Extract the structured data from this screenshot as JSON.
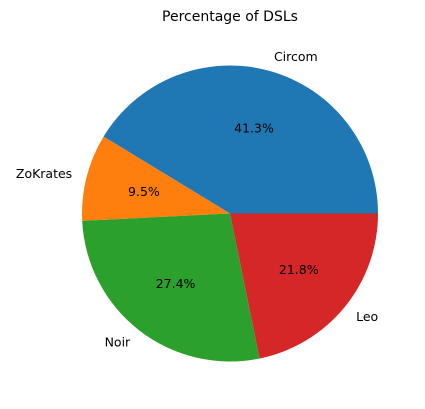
{
  "chart_data": {
    "type": "pie",
    "title": "Percentage of DSLs",
    "series": [
      {
        "label": "Circom",
        "value": 41.3,
        "pct_label": "41.3%",
        "color": "#1f77b4"
      },
      {
        "label": "ZoKrates",
        "value": 9.5,
        "pct_label": "9.5%",
        "color": "#ff7f0e"
      },
      {
        "label": "Noir",
        "value": 27.4,
        "pct_label": "27.4%",
        "color": "#2ca02c"
      },
      {
        "label": "Leo",
        "value": 21.8,
        "pct_label": "21.8%",
        "color": "#d62728"
      }
    ]
  }
}
